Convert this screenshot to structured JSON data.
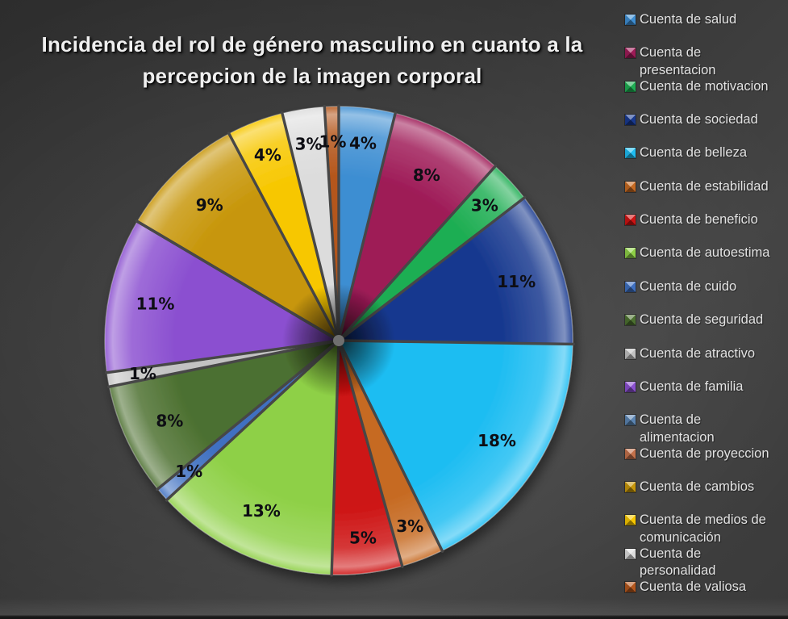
{
  "title_lines": [
    "Incidencia del rol de género masculino en cuanto a la",
    "percepcion de la imagen corporal"
  ],
  "chart_data": {
    "type": "pie",
    "title": "Incidencia del rol de género masculino en cuanto a la percepcion de la imagen corporal",
    "legend_position": "right",
    "start_angle": "12-o-clock, clockwise",
    "slices": [
      {
        "label": "Cuenta de salud",
        "legend_lines": [
          "Cuenta de salud"
        ],
        "pct": 4,
        "data_label": "4%",
        "color": "#3E8ED2"
      },
      {
        "label": "Cuenta de presentacion",
        "legend_lines": [
          "Cuenta de",
          "presentacion"
        ],
        "pct": 8,
        "data_label": "8%",
        "color": "#9E1B57"
      },
      {
        "label": "Cuenta de motivacion",
        "legend_lines": [
          "Cuenta de motivacion"
        ],
        "pct": 3,
        "data_label": "3%",
        "color": "#1FAE53"
      },
      {
        "label": "Cuenta de sociedad",
        "legend_lines": [
          "Cuenta de sociedad"
        ],
        "pct": 11,
        "data_label": "11%",
        "color": "#18398F"
      },
      {
        "label": "Cuenta de belleza",
        "legend_lines": [
          "Cuenta de belleza"
        ],
        "pct": 18,
        "data_label": "18%",
        "color": "#1FBDF2"
      },
      {
        "label": "Cuenta de estabilidad",
        "legend_lines": [
          "Cuenta de estabilidad"
        ],
        "pct": 3,
        "data_label": "3%",
        "color": "#C66A22"
      },
      {
        "label": "Cuenta de beneficio",
        "legend_lines": [
          "Cuenta de beneficio"
        ],
        "pct": 5,
        "data_label": "5%",
        "color": "#CD1212"
      },
      {
        "label": "Cuenta de autoestima",
        "legend_lines": [
          "Cuenta de autoestima"
        ],
        "pct": 13,
        "data_label": "13%",
        "color": "#8ED046"
      },
      {
        "label": "Cuenta de cuido",
        "legend_lines": [
          "Cuenta de cuido"
        ],
        "pct": 1,
        "data_label": "1%",
        "color": "#3F70C1"
      },
      {
        "label": "Cuenta de seguridad",
        "legend_lines": [
          "Cuenta de seguridad"
        ],
        "pct": 8,
        "data_label": "8%",
        "color": "#4C7030"
      },
      {
        "label": "Cuenta de atractivo",
        "legend_lines": [
          "Cuenta de atractivo"
        ],
        "pct": 1,
        "data_label": "1%",
        "color": "#C2C2C2"
      },
      {
        "label": "Cuenta de familia",
        "legend_lines": [
          "Cuenta de familia"
        ],
        "pct": 11,
        "data_label": "11%",
        "color": "#8B50D0"
      },
      {
        "label": "Cuenta de alimentacion",
        "legend_lines": [
          "Cuenta de",
          "alimentacion"
        ],
        "pct": 0,
        "data_label": "",
        "color": "#5B84B1"
      },
      {
        "label": "Cuenta de proyeccion",
        "legend_lines": [
          "Cuenta de proyeccion"
        ],
        "pct": 0,
        "data_label": "",
        "color": "#C4714B"
      },
      {
        "label": "Cuenta de cambios",
        "legend_lines": [
          "Cuenta de cambios"
        ],
        "pct": 9,
        "data_label": "9%",
        "color": "#C7960A"
      },
      {
        "label": "Cuenta de medios de comunicación",
        "legend_lines": [
          "Cuenta de medios de",
          "comunicación"
        ],
        "pct": 4,
        "data_label": "4%",
        "color": "#F7C700"
      },
      {
        "label": "Cuenta de personalidad",
        "legend_lines": [
          "Cuenta de",
          "personalidad"
        ],
        "pct": 3,
        "data_label": "3%",
        "color": "#DCDCDC"
      },
      {
        "label": "Cuenta de valiosa",
        "legend_lines": [
          "Cuenta de valiosa"
        ],
        "pct": 1,
        "data_label": "1%",
        "color": "#B4571D"
      }
    ]
  }
}
